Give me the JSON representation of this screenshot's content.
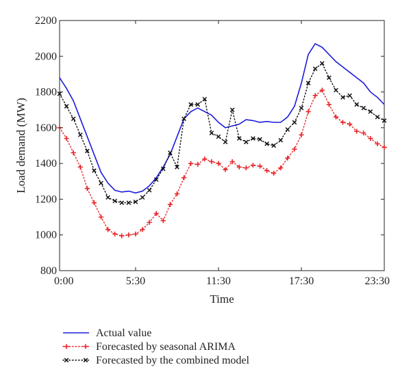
{
  "chart_data": {
    "type": "line",
    "title": "",
    "xlabel": "Time",
    "ylabel": "Load demand (MW)",
    "xlim": [
      0,
      47
    ],
    "ylim": [
      800,
      2200
    ],
    "x_ticks": [
      {
        "index": 0,
        "label": "0:00"
      },
      {
        "index": 11,
        "label": "5:30"
      },
      {
        "index": 23,
        "label": "11:30"
      },
      {
        "index": 35,
        "label": "17:30"
      },
      {
        "index": 47,
        "label": "23:30"
      }
    ],
    "y_ticks": [
      800,
      1000,
      1200,
      1400,
      1600,
      1800,
      2000,
      2200
    ],
    "grid": false,
    "legend_position": "below",
    "series": [
      {
        "name": "Actual value",
        "style": "solid",
        "marker": "none",
        "color": "#1a1adc",
        "values": [
          1880,
          1820,
          1750,
          1650,
          1550,
          1450,
          1350,
          1290,
          1250,
          1240,
          1245,
          1235,
          1245,
          1275,
          1320,
          1380,
          1450,
          1550,
          1650,
          1690,
          1710,
          1690,
          1670,
          1630,
          1600,
          1610,
          1620,
          1645,
          1640,
          1630,
          1635,
          1630,
          1630,
          1660,
          1720,
          1850,
          2010,
          2070,
          2050,
          2010,
          1970,
          1940,
          1910,
          1880,
          1850,
          1800,
          1770,
          1730
        ]
      },
      {
        "name": "Forecasted by seasonal ARIMA",
        "style": "dotted",
        "marker": "+",
        "color": "#e8262a",
        "values": [
          1600,
          1540,
          1460,
          1380,
          1260,
          1180,
          1100,
          1030,
          1005,
          995,
          1000,
          1005,
          1030,
          1070,
          1120,
          1080,
          1170,
          1230,
          1320,
          1400,
          1395,
          1425,
          1410,
          1400,
          1365,
          1410,
          1380,
          1375,
          1390,
          1385,
          1360,
          1345,
          1375,
          1430,
          1480,
          1560,
          1690,
          1780,
          1810,
          1730,
          1660,
          1630,
          1620,
          1580,
          1570,
          1540,
          1510,
          1490
        ]
      },
      {
        "name": "Forecasted by the combined model",
        "style": "dotted",
        "marker": "x",
        "color": "#111111",
        "values": [
          1790,
          1720,
          1650,
          1560,
          1470,
          1360,
          1290,
          1210,
          1190,
          1180,
          1180,
          1185,
          1210,
          1250,
          1310,
          1370,
          1460,
          1380,
          1650,
          1730,
          1730,
          1760,
          1570,
          1550,
          1520,
          1700,
          1540,
          1520,
          1540,
          1535,
          1510,
          1500,
          1530,
          1590,
          1630,
          1710,
          1850,
          1930,
          1960,
          1880,
          1810,
          1770,
          1780,
          1730,
          1710,
          1690,
          1660,
          1640
        ]
      }
    ]
  }
}
